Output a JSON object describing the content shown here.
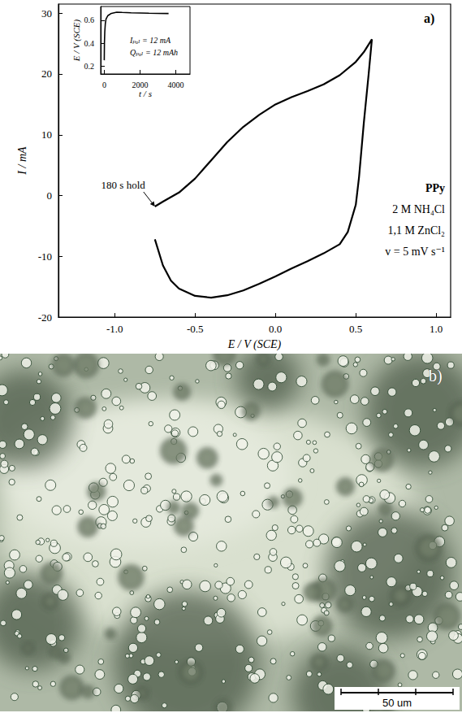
{
  "chart_data": [
    {
      "type": "line",
      "label": "a)",
      "x_label": "E / V (SCE)",
      "y_label": "I / mA",
      "color": "#000000",
      "grid": false,
      "x": [
        -0.75,
        -0.7,
        -0.6,
        -0.5,
        -0.4,
        -0.3,
        -0.2,
        -0.1,
        0.0,
        0.1,
        0.2,
        0.3,
        0.4,
        0.5,
        0.55,
        0.6,
        0.58,
        0.55,
        0.52,
        0.5,
        0.45,
        0.4,
        0.3,
        0.2,
        0.1,
        0.0,
        -0.1,
        -0.2,
        -0.3,
        -0.4,
        -0.5,
        -0.6,
        -0.65,
        -0.7,
        -0.75
      ],
      "values": [
        -1.8,
        -1.0,
        0.5,
        2.8,
        5.8,
        8.8,
        11.3,
        13.3,
        15,
        16.2,
        17.2,
        18.3,
        19.8,
        22,
        23.6,
        25.7,
        20,
        12,
        3,
        -1.5,
        -6,
        -8,
        -9.5,
        -10.8,
        -12,
        -13.3,
        -14.5,
        -15.6,
        -16.4,
        -16.8,
        -16.5,
        -15.3,
        -14,
        -11.5,
        -7.2
      ],
      "xlim": [
        -1.35,
        1.09
      ],
      "xticks": [
        {
          "value": -1.0,
          "label": "-1.0"
        },
        -0.5,
        {
          "value": 0,
          "label": "0.0"
        },
        0.5,
        {
          "value": 1.0,
          "label": "1.0"
        }
      ],
      "ylim": [
        -20,
        31.5
      ],
      "yticks": [
        -20,
        -10,
        0,
        10,
        20,
        30
      ],
      "annotations": [
        {
          "text": "180 s hold",
          "x": -0.75,
          "y": -1.8
        }
      ],
      "notes": [
        "PPy",
        "2 M NH₄Cl",
        "1,1 M ZnCl₂",
        "v = 5 mV s⁻¹"
      ]
    },
    {
      "type": "line",
      "x_label": "t / s",
      "y_label": "E / V (SCE)",
      "color": "#000000",
      "grid": false,
      "x": [
        0,
        10,
        30,
        60,
        100,
        200,
        400,
        700,
        1000,
        1500,
        2000,
        2500,
        3000,
        3600
      ],
      "values": [
        0.25,
        0.4,
        0.5,
        0.57,
        0.61,
        0.64,
        0.66,
        0.67,
        0.668,
        0.665,
        0.663,
        0.661,
        0.66,
        0.659
      ],
      "xlim": [
        -200,
        4800
      ],
      "xticks": [
        0,
        2000,
        4000
      ],
      "ylim": [
        0.13,
        0.72
      ],
      "yticks": [
        0.2,
        0.4,
        0.6
      ],
      "notes": [
        "Iₚₒₗ = 12 mA",
        "Qₚₒₗ = 12 mAh"
      ]
    }
  ],
  "micrograph": {
    "label": "b)",
    "scale_bar": "50 um"
  }
}
